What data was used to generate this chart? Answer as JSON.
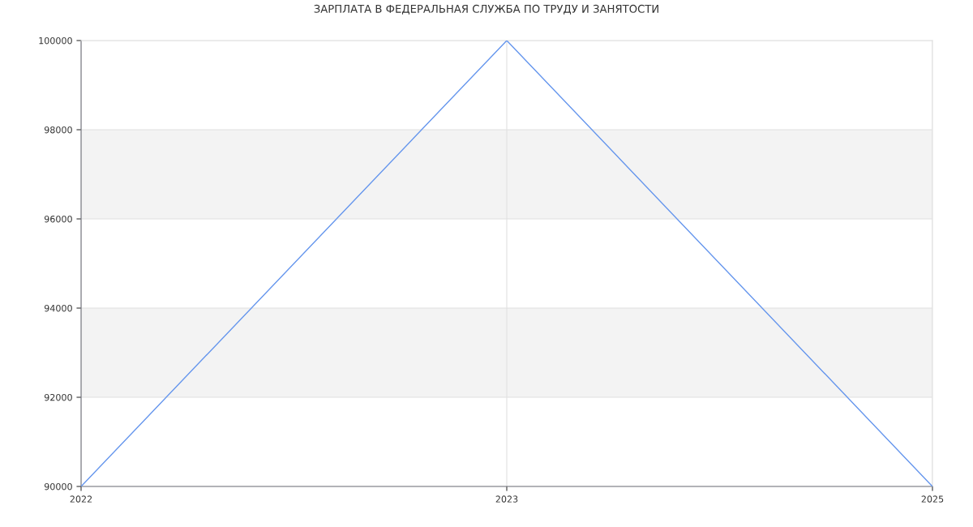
{
  "chart_data": {
    "type": "line",
    "title": "ЗАРПЛАТА В ФЕДЕРАЛЬНАЯ СЛУЖБА ПО ТРУДУ И ЗАНЯТОСТИ",
    "categories": [
      "2022",
      "2023",
      "2025"
    ],
    "series": [
      {
        "color": "#6495ed",
        "values": [
          90000,
          100000,
          90000
        ]
      }
    ],
    "ylim": [
      90000,
      100000
    ],
    "yticks": [
      90000,
      92000,
      94000,
      96000,
      98000,
      100000
    ],
    "bands": [
      {
        "axis": "y",
        "from": 92000,
        "to": 94000,
        "color": "#f3f3f3"
      },
      {
        "axis": "y",
        "from": 96000,
        "to": 98000,
        "color": "#f3f3f3"
      }
    ],
    "grid": true,
    "marker": "none",
    "line_style": "solid"
  }
}
